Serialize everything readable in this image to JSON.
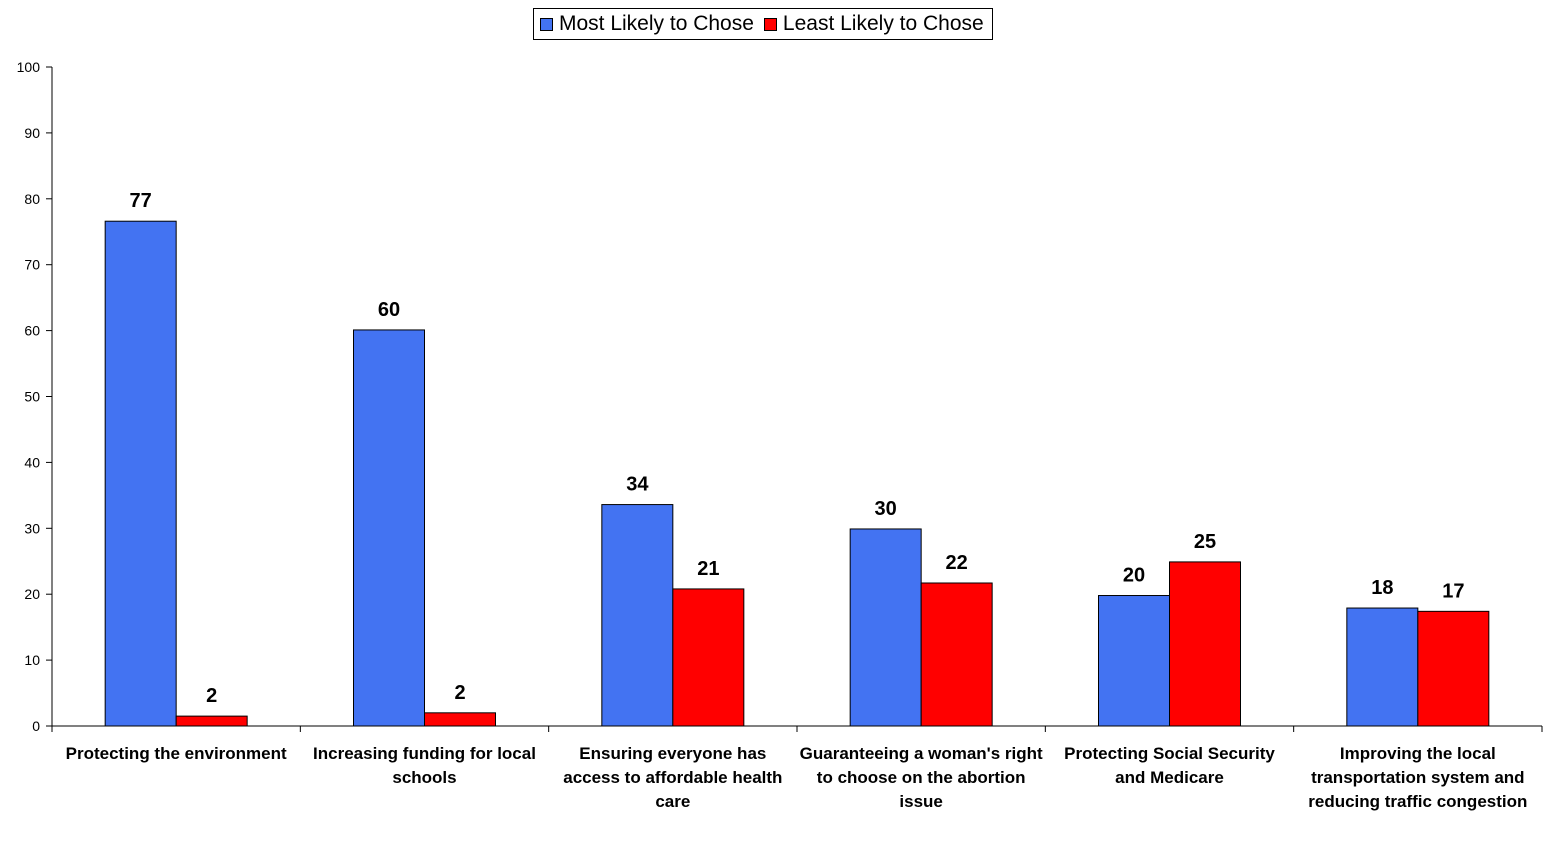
{
  "chart_data": {
    "type": "bar",
    "title": "",
    "xlabel": "",
    "ylabel": "",
    "ylim": [
      0,
      100
    ],
    "yticks": [
      0,
      10,
      20,
      30,
      40,
      50,
      60,
      70,
      80,
      90,
      100
    ],
    "legend_position": "top-center",
    "grid": false,
    "categories": [
      "Protecting the environment",
      "Increasing funding for local schools",
      "Ensuring everyone has access to affordable health care",
      "Guaranteeing a woman's right to choose on the abortion issue",
      "Protecting Social Security and Medicare",
      "Improving the local transportation system and reducing traffic congestion"
    ],
    "series": [
      {
        "name": "Most Likely to Chose",
        "color": "#4373F2",
        "values": [
          76.6,
          60.1,
          33.6,
          29.9,
          19.8,
          17.9
        ],
        "labels": [
          "77",
          "60",
          "34",
          "30",
          "20",
          "18"
        ]
      },
      {
        "name": "Least Likely to Chose",
        "color": "#FF0000",
        "values": [
          1.5,
          2.0,
          20.8,
          21.7,
          24.9,
          17.4
        ],
        "labels": [
          "2",
          "2",
          "21",
          "22",
          "25",
          "17"
        ]
      }
    ]
  }
}
